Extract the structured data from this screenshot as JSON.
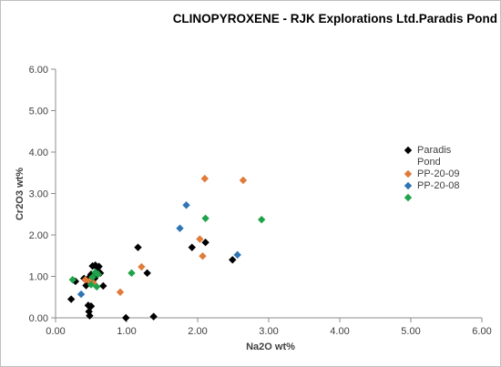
{
  "chart_data": {
    "type": "scatter",
    "title": "CLINOPYROXENE - RJK Explorations Ltd.Paradis Pond",
    "xlabel": "Na2O wt%",
    "ylabel": "Cr2O3 wt%",
    "xlim": [
      0,
      6
    ],
    "ylim": [
      0,
      6
    ],
    "x_ticks": [
      "0.00",
      "1.00",
      "2.00",
      "3.00",
      "4.00",
      "5.00",
      "6.00"
    ],
    "y_ticks": [
      "0.00",
      "1.00",
      "2.00",
      "3.00",
      "4.00",
      "5.00",
      "6.00"
    ],
    "grid": false,
    "legend_position": "right",
    "legend_entries": [
      "Paradis\nPond",
      "PP-20-09",
      "PP-20-08",
      ""
    ],
    "series": [
      {
        "name": "Paradis Pond",
        "color": "#000000",
        "points": [
          [
            0.22,
            0.45
          ],
          [
            0.28,
            0.88
          ],
          [
            0.4,
            0.95
          ],
          [
            0.43,
            0.78
          ],
          [
            0.46,
            0.3
          ],
          [
            0.47,
            0.15
          ],
          [
            0.48,
            0.05
          ],
          [
            0.5,
            0.28
          ],
          [
            0.47,
            0.97
          ],
          [
            0.5,
            1.05
          ],
          [
            0.52,
            1.25
          ],
          [
            0.56,
            1.27
          ],
          [
            0.59,
            1.2
          ],
          [
            0.61,
            1.24
          ],
          [
            0.63,
            1.08
          ],
          [
            0.67,
            0.77
          ],
          [
            0.55,
            0.95
          ],
          [
            0.99,
            0.0
          ],
          [
            1.16,
            1.7
          ],
          [
            1.29,
            1.08
          ],
          [
            1.38,
            0.03
          ],
          [
            1.92,
            1.7
          ],
          [
            2.11,
            1.82
          ],
          [
            2.49,
            1.4
          ]
        ]
      },
      {
        "name": "PP-20-09",
        "color": "#e07b39",
        "points": [
          [
            0.42,
            0.92
          ],
          [
            0.48,
            0.88
          ],
          [
            0.53,
            0.85
          ],
          [
            0.91,
            0.62
          ],
          [
            1.21,
            1.23
          ],
          [
            2.03,
            1.9
          ],
          [
            2.07,
            1.49
          ],
          [
            2.1,
            3.36
          ],
          [
            2.64,
            3.32
          ]
        ]
      },
      {
        "name": "PP-20-08",
        "color": "#2e75b6",
        "points": [
          [
            0.36,
            0.57
          ],
          [
            1.75,
            2.16
          ],
          [
            1.84,
            2.72
          ],
          [
            2.56,
            1.52
          ]
        ]
      },
      {
        "name": "",
        "color": "#1fa34a",
        "points": [
          [
            0.24,
            0.92
          ],
          [
            0.5,
            0.8
          ],
          [
            0.52,
            0.98
          ],
          [
            0.56,
            1.1
          ],
          [
            0.58,
            0.75
          ],
          [
            0.6,
            1.05
          ],
          [
            1.07,
            1.08
          ],
          [
            2.11,
            2.4
          ],
          [
            2.9,
            2.37
          ]
        ]
      }
    ]
  }
}
